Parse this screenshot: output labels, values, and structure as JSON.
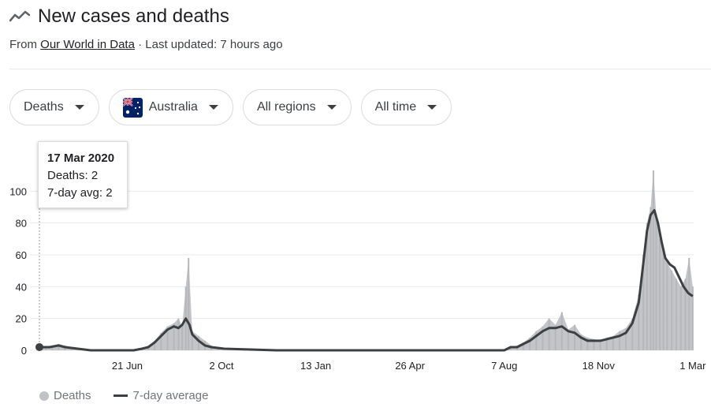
{
  "header": {
    "title": "New cases and deaths",
    "icon": "trending-line-icon",
    "from_label": "From ",
    "source": "Our World in Data",
    "updated": " · Last updated: 7 hours ago"
  },
  "filters": [
    {
      "label": "Deaths",
      "icon": "chevron-down-icon"
    },
    {
      "label": "Australia",
      "icon": "australia-flag-icon"
    },
    {
      "label": "All regions",
      "icon": "chevron-down-icon"
    },
    {
      "label": "All time",
      "icon": "chevron-down-icon"
    }
  ],
  "tooltip": {
    "date": "17 Mar 2020",
    "deaths": "Deaths: 2",
    "avg": "7-day avg: 2"
  },
  "legend": {
    "deaths": "Deaths",
    "avg": "7-day average"
  },
  "colors": {
    "bars": "#c0c2c5",
    "line": "#3c4043",
    "grid": "#e8eaed",
    "text": "#202124",
    "muted": "#70757a"
  },
  "chart_data": {
    "type": "bar",
    "x_start": "2020-03-17",
    "x_end": "2022-03-02",
    "ylim": [
      0,
      115
    ],
    "yticks": [
      0,
      20,
      40,
      60,
      80,
      100
    ],
    "xticks": [
      {
        "date": "2020-06-21",
        "label": "21 Jun"
      },
      {
        "date": "2020-10-02",
        "label": "2 Oct"
      },
      {
        "date": "2021-01-13",
        "label": "13 Jan"
      },
      {
        "date": "2021-04-26",
        "label": "26 Apr"
      },
      {
        "date": "2021-08-07",
        "label": "7 Aug"
      },
      {
        "date": "2021-11-18",
        "label": "18 Nov"
      },
      {
        "date": "2022-03-01",
        "label": "1 Mar"
      }
    ],
    "grid": true,
    "legend_position": "bottom-left",
    "highlight": {
      "date": "2020-03-17",
      "value": 2
    },
    "series": [
      {
        "name": "Deaths",
        "kind": "bar",
        "points": [
          [
            "2020-03-17",
            2
          ],
          [
            "2020-03-24",
            2
          ],
          [
            "2020-03-31",
            3
          ],
          [
            "2020-04-07",
            4
          ],
          [
            "2020-04-14",
            3
          ],
          [
            "2020-04-21",
            2
          ],
          [
            "2020-04-28",
            1
          ],
          [
            "2020-05-05",
            1
          ],
          [
            "2020-05-12",
            0
          ],
          [
            "2020-05-26",
            0
          ],
          [
            "2020-06-21",
            0
          ],
          [
            "2020-07-07",
            1
          ],
          [
            "2020-07-14",
            3
          ],
          [
            "2020-07-21",
            6
          ],
          [
            "2020-07-28",
            11
          ],
          [
            "2020-08-04",
            15
          ],
          [
            "2020-08-11",
            17
          ],
          [
            "2020-08-16",
            20
          ],
          [
            "2020-08-20",
            15
          ],
          [
            "2020-08-24",
            40
          ],
          [
            "2020-08-27",
            58
          ],
          [
            "2020-08-31",
            12
          ],
          [
            "2020-09-07",
            9
          ],
          [
            "2020-09-14",
            6
          ],
          [
            "2020-09-21",
            3
          ],
          [
            "2020-09-28",
            1
          ],
          [
            "2020-10-05",
            0
          ],
          [
            "2021-08-07",
            0
          ],
          [
            "2021-08-14",
            2
          ],
          [
            "2021-08-21",
            3
          ],
          [
            "2021-08-28",
            5
          ],
          [
            "2021-09-04",
            8
          ],
          [
            "2021-09-11",
            12
          ],
          [
            "2021-09-18",
            15
          ],
          [
            "2021-09-25",
            20
          ],
          [
            "2021-10-02",
            16
          ],
          [
            "2021-10-09",
            24
          ],
          [
            "2021-10-16",
            13
          ],
          [
            "2021-10-23",
            16
          ],
          [
            "2021-10-30",
            10
          ],
          [
            "2021-11-06",
            8
          ],
          [
            "2021-11-13",
            7
          ],
          [
            "2021-11-20",
            6
          ],
          [
            "2021-11-27",
            8
          ],
          [
            "2021-12-04",
            9
          ],
          [
            "2021-12-11",
            12
          ],
          [
            "2021-12-18",
            14
          ],
          [
            "2021-12-25",
            20
          ],
          [
            "2022-01-01",
            35
          ],
          [
            "2022-01-06",
            60
          ],
          [
            "2022-01-10",
            80
          ],
          [
            "2022-01-14",
            90
          ],
          [
            "2022-01-17",
            113
          ],
          [
            "2022-01-20",
            86
          ],
          [
            "2022-01-24",
            70
          ],
          [
            "2022-01-28",
            62
          ],
          [
            "2022-02-01",
            55
          ],
          [
            "2022-02-06",
            50
          ],
          [
            "2022-02-11",
            45
          ],
          [
            "2022-02-16",
            40
          ],
          [
            "2022-02-21",
            45
          ],
          [
            "2022-02-25",
            58
          ],
          [
            "2022-03-01",
            40
          ]
        ]
      },
      {
        "name": "7-day average",
        "kind": "line",
        "points": [
          [
            "2020-03-17",
            2
          ],
          [
            "2020-03-28",
            2
          ],
          [
            "2020-04-07",
            3
          ],
          [
            "2020-04-14",
            2
          ],
          [
            "2020-04-28",
            1
          ],
          [
            "2020-05-12",
            0
          ],
          [
            "2020-06-28",
            0
          ],
          [
            "2020-07-07",
            1
          ],
          [
            "2020-07-14",
            2
          ],
          [
            "2020-07-21",
            5
          ],
          [
            "2020-07-28",
            9
          ],
          [
            "2020-08-04",
            13
          ],
          [
            "2020-08-11",
            15
          ],
          [
            "2020-08-16",
            14
          ],
          [
            "2020-08-20",
            16
          ],
          [
            "2020-08-24",
            20
          ],
          [
            "2020-08-28",
            16
          ],
          [
            "2020-08-31",
            10
          ],
          [
            "2020-09-07",
            6
          ],
          [
            "2020-09-14",
            3
          ],
          [
            "2020-09-21",
            2
          ],
          [
            "2020-10-05",
            1
          ],
          [
            "2020-12-01",
            0
          ],
          [
            "2021-08-07",
            0
          ],
          [
            "2021-08-14",
            2
          ],
          [
            "2021-08-21",
            2
          ],
          [
            "2021-08-28",
            4
          ],
          [
            "2021-09-04",
            6
          ],
          [
            "2021-09-11",
            9
          ],
          [
            "2021-09-18",
            12
          ],
          [
            "2021-09-25",
            14
          ],
          [
            "2021-10-02",
            14
          ],
          [
            "2021-10-09",
            15
          ],
          [
            "2021-10-16",
            12
          ],
          [
            "2021-10-23",
            11
          ],
          [
            "2021-10-30",
            8
          ],
          [
            "2021-11-06",
            6
          ],
          [
            "2021-11-13",
            6
          ],
          [
            "2021-11-20",
            6
          ],
          [
            "2021-11-27",
            7
          ],
          [
            "2021-12-04",
            8
          ],
          [
            "2021-12-11",
            9
          ],
          [
            "2021-12-18",
            11
          ],
          [
            "2021-12-25",
            17
          ],
          [
            "2022-01-01",
            30
          ],
          [
            "2022-01-06",
            55
          ],
          [
            "2022-01-10",
            75
          ],
          [
            "2022-01-14",
            85
          ],
          [
            "2022-01-18",
            88
          ],
          [
            "2022-01-22",
            80
          ],
          [
            "2022-01-26",
            68
          ],
          [
            "2022-01-30",
            58
          ],
          [
            "2022-02-04",
            54
          ],
          [
            "2022-02-09",
            52
          ],
          [
            "2022-02-14",
            46
          ],
          [
            "2022-02-19",
            40
          ],
          [
            "2022-02-24",
            36
          ],
          [
            "2022-03-01",
            34
          ]
        ]
      }
    ]
  }
}
